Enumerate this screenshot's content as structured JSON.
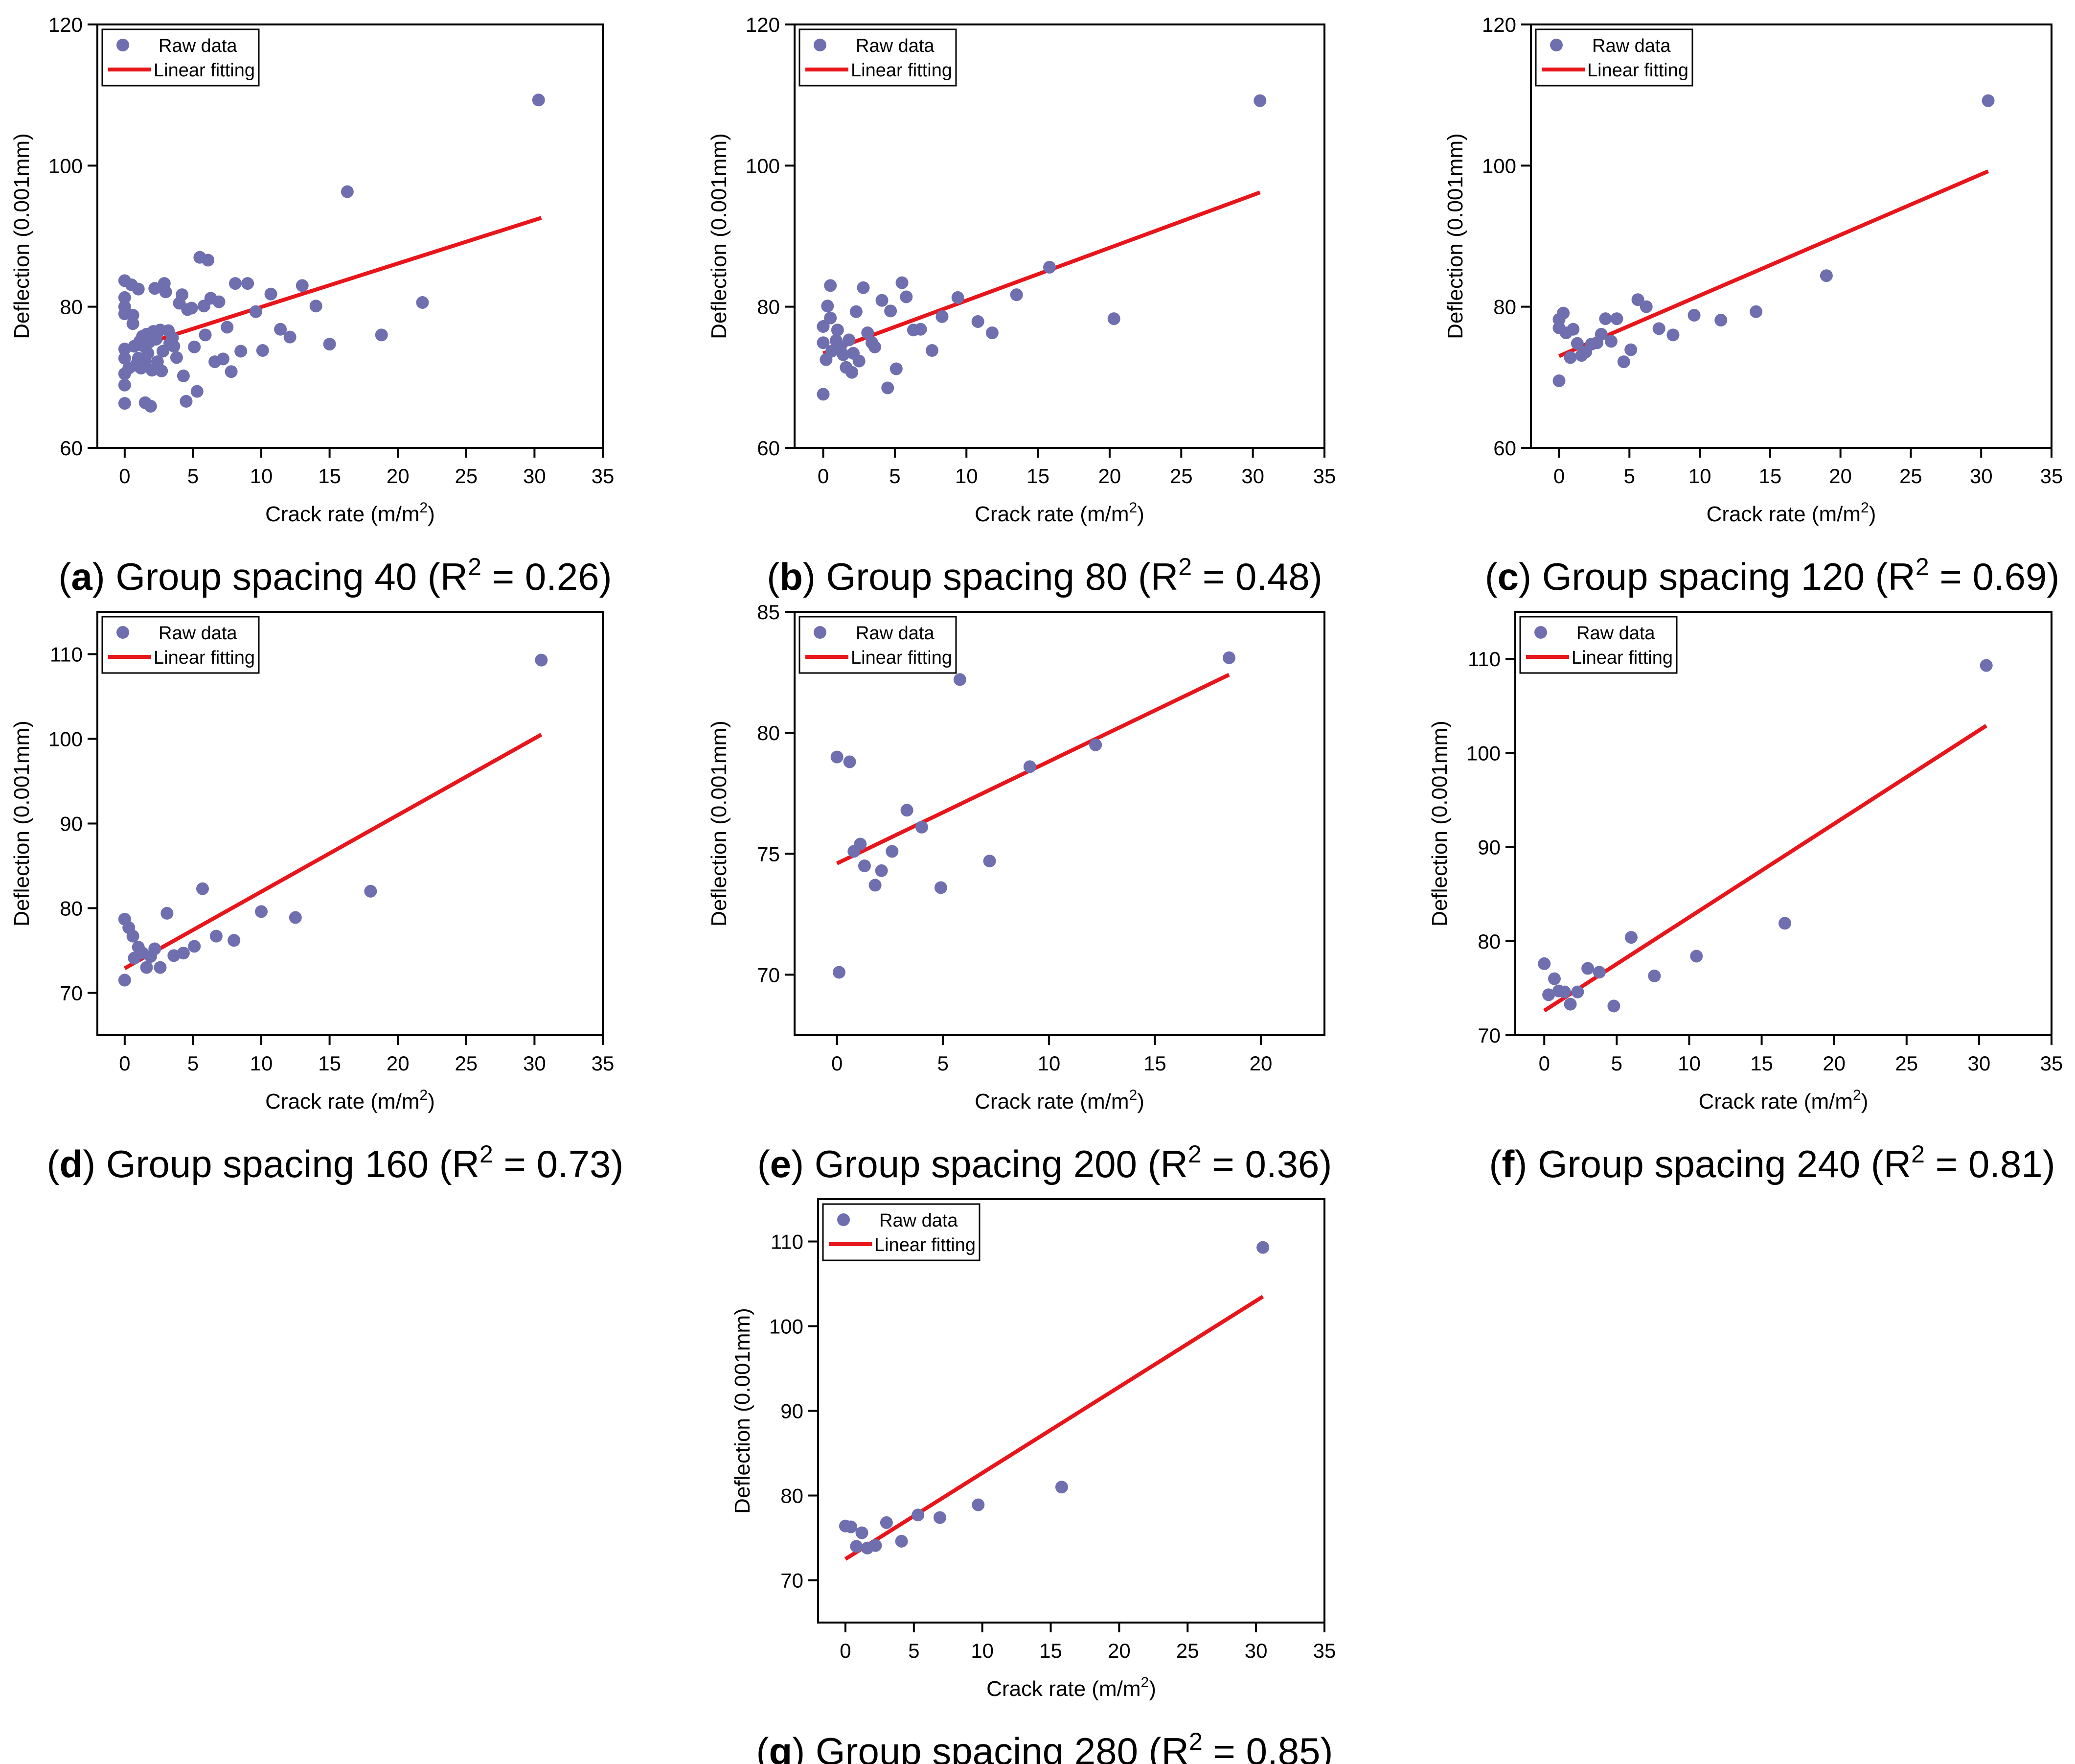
{
  "chart_data": [
    {
      "id": "a",
      "type": "scatter",
      "xlabel": "Crack rate (m/m",
      "xlabel_sup": "2",
      "xlabel_end": ")",
      "ylabel": "Deflection (0.001mm)",
      "xlim": [
        -2,
        35
      ],
      "ylim": [
        60,
        120
      ],
      "xticks": [
        0,
        5,
        10,
        15,
        20,
        25,
        30,
        35
      ],
      "yticks": [
        60,
        80,
        100,
        120
      ],
      "legend": [
        "Raw data",
        "Linear fitting"
      ],
      "caption": {
        "letter": "a",
        "text": " Group spacing 40 (R",
        "sup": "2",
        "end": " = 0.26)"
      },
      "fit": [
        [
          0,
          73.8
        ],
        [
          30.5,
          92.6
        ]
      ],
      "points": [
        [
          0,
          66.3
        ],
        [
          0,
          68.9
        ],
        [
          0,
          70.5
        ],
        [
          0,
          72.7
        ],
        [
          0,
          74.0
        ],
        [
          0,
          79.0
        ],
        [
          0,
          80.0
        ],
        [
          0,
          81.3
        ],
        [
          0,
          83.7
        ],
        [
          0.3,
          71.3
        ],
        [
          0.5,
          83.1
        ],
        [
          0.6,
          77.6
        ],
        [
          0.6,
          78.8
        ],
        [
          0.7,
          74.4
        ],
        [
          0.8,
          71.7
        ],
        [
          1.0,
          72.7
        ],
        [
          1.0,
          82.5
        ],
        [
          1.1,
          75.1
        ],
        [
          1.2,
          71.3
        ],
        [
          1.3,
          74.5
        ],
        [
          1.3,
          75.8
        ],
        [
          1.5,
          72.3
        ],
        [
          1.5,
          66.4
        ],
        [
          1.6,
          76.1
        ],
        [
          1.7,
          73.4
        ],
        [
          1.8,
          75.0
        ],
        [
          1.9,
          65.9
        ],
        [
          2.0,
          71.0
        ],
        [
          2.1,
          76.5
        ],
        [
          2.2,
          82.6
        ],
        [
          2.3,
          75.4
        ],
        [
          2.4,
          72.2
        ],
        [
          2.6,
          76.7
        ],
        [
          2.7,
          70.9
        ],
        [
          2.8,
          73.7
        ],
        [
          2.9,
          83.3
        ],
        [
          3.0,
          82.1
        ],
        [
          3.2,
          76.6
        ],
        [
          3.3,
          74.8
        ],
        [
          3.5,
          75.6
        ],
        [
          3.6,
          74.4
        ],
        [
          3.8,
          72.8
        ],
        [
          4.0,
          80.5
        ],
        [
          4.2,
          81.7
        ],
        [
          4.3,
          70.2
        ],
        [
          4.5,
          66.6
        ],
        [
          4.6,
          79.6
        ],
        [
          4.9,
          79.8
        ],
        [
          5.1,
          74.3
        ],
        [
          5.3,
          68.0
        ],
        [
          5.5,
          87.0
        ],
        [
          5.8,
          80.1
        ],
        [
          5.9,
          76.0
        ],
        [
          6.1,
          86.6
        ],
        [
          6.3,
          81.2
        ],
        [
          6.6,
          72.2
        ],
        [
          6.9,
          80.7
        ],
        [
          7.2,
          72.6
        ],
        [
          7.5,
          77.1
        ],
        [
          7.8,
          70.8
        ],
        [
          8.1,
          83.3
        ],
        [
          8.5,
          73.7
        ],
        [
          9.0,
          83.3
        ],
        [
          9.6,
          79.3
        ],
        [
          10.1,
          73.8
        ],
        [
          10.7,
          81.8
        ],
        [
          11.4,
          76.8
        ],
        [
          12.1,
          75.7
        ],
        [
          13.0,
          83.0
        ],
        [
          14.0,
          80.1
        ],
        [
          15.0,
          74.7
        ],
        [
          16.3,
          96.3
        ],
        [
          18.8,
          76.0
        ],
        [
          21.8,
          80.6
        ],
        [
          30.3,
          109.3
        ]
      ]
    },
    {
      "id": "b",
      "type": "scatter",
      "xlabel": "Crack rate (m/m",
      "xlabel_sup": "2",
      "xlabel_end": ")",
      "ylabel": "Deflection (0.001mm)",
      "xlim": [
        -2,
        35
      ],
      "ylim": [
        60,
        120
      ],
      "xticks": [
        0,
        5,
        10,
        15,
        20,
        25,
        30,
        35
      ],
      "yticks": [
        60,
        80,
        100,
        120
      ],
      "legend": [
        "Raw data",
        "Linear fitting"
      ],
      "caption": {
        "letter": "b",
        "text": " Group spacing 80 (R",
        "sup": "2",
        "end": " = 0.48)"
      },
      "fit": [
        [
          0,
          73.4
        ],
        [
          30.5,
          96.2
        ]
      ],
      "points": [
        [
          0,
          67.6
        ],
        [
          0,
          74.9
        ],
        [
          0,
          77.2
        ],
        [
          0.2,
          72.5
        ],
        [
          0.3,
          80.1
        ],
        [
          0.5,
          78.4
        ],
        [
          0.5,
          83.0
        ],
        [
          0.6,
          73.7
        ],
        [
          0.9,
          75.2
        ],
        [
          1.0,
          76.7
        ],
        [
          1.2,
          74.3
        ],
        [
          1.4,
          73.2
        ],
        [
          1.6,
          71.4
        ],
        [
          1.8,
          75.3
        ],
        [
          2.0,
          70.7
        ],
        [
          2.1,
          73.4
        ],
        [
          2.3,
          79.3
        ],
        [
          2.5,
          72.3
        ],
        [
          2.8,
          82.7
        ],
        [
          3.1,
          76.3
        ],
        [
          3.4,
          74.9
        ],
        [
          3.6,
          74.3
        ],
        [
          4.1,
          80.9
        ],
        [
          4.5,
          68.5
        ],
        [
          4.7,
          79.4
        ],
        [
          5.1,
          71.2
        ],
        [
          5.5,
          83.4
        ],
        [
          5.8,
          81.4
        ],
        [
          6.3,
          76.7
        ],
        [
          6.8,
          76.8
        ],
        [
          7.6,
          73.8
        ],
        [
          8.3,
          78.6
        ],
        [
          9.4,
          81.3
        ],
        [
          10.8,
          77.9
        ],
        [
          11.8,
          76.3
        ],
        [
          13.5,
          81.7
        ],
        [
          15.8,
          85.6
        ],
        [
          20.3,
          78.3
        ],
        [
          30.5,
          109.2
        ]
      ]
    },
    {
      "id": "c",
      "type": "scatter",
      "xlabel": "Crack rate (m/m",
      "xlabel_sup": "2",
      "xlabel_end": ")",
      "ylabel": "Deflection (0.001mm)",
      "xlim": [
        -2,
        35
      ],
      "ylim": [
        60,
        120
      ],
      "xticks": [
        0,
        5,
        10,
        15,
        20,
        25,
        30,
        35
      ],
      "yticks": [
        60,
        80,
        100,
        120
      ],
      "legend": [
        "Raw data",
        "Linear fitting"
      ],
      "caption": {
        "letter": "c",
        "text": " Group spacing 120 (R",
        "sup": "2",
        "end": " = 0.69)"
      },
      "fit": [
        [
          0,
          73.0
        ],
        [
          30.5,
          99.2
        ]
      ],
      "points": [
        [
          0,
          69.5
        ],
        [
          0,
          77.0
        ],
        [
          0,
          78.2
        ],
        [
          0.3,
          79.1
        ],
        [
          0.5,
          76.3
        ],
        [
          0.8,
          72.8
        ],
        [
          1.0,
          76.8
        ],
        [
          1.3,
          74.8
        ],
        [
          1.6,
          73.1
        ],
        [
          1.9,
          73.6
        ],
        [
          2.3,
          74.7
        ],
        [
          2.7,
          74.9
        ],
        [
          3.0,
          76.1
        ],
        [
          3.3,
          78.3
        ],
        [
          3.7,
          75.1
        ],
        [
          4.1,
          78.3
        ],
        [
          4.6,
          72.2
        ],
        [
          5.1,
          73.9
        ],
        [
          5.6,
          81.0
        ],
        [
          6.2,
          80.0
        ],
        [
          7.1,
          76.9
        ],
        [
          8.1,
          76.0
        ],
        [
          9.6,
          78.8
        ],
        [
          11.5,
          78.1
        ],
        [
          14.0,
          79.3
        ],
        [
          19.0,
          84.4
        ],
        [
          30.5,
          109.2
        ]
      ]
    },
    {
      "id": "d",
      "type": "scatter",
      "xlabel": "Crack rate (m/m",
      "xlabel_sup": "2",
      "xlabel_end": ")",
      "ylabel": "Deflection (0.001mm)",
      "xlim": [
        -2,
        35
      ],
      "ylim": [
        65,
        115
      ],
      "xticks": [
        0,
        5,
        10,
        15,
        20,
        25,
        30,
        35
      ],
      "yticks": [
        70,
        80,
        90,
        100,
        110
      ],
      "legend": [
        "Raw data",
        "Linear fitting"
      ],
      "caption": {
        "letter": "d",
        "text": " Group spacing 160 (R",
        "sup": "2",
        "end": " = 0.73)"
      },
      "fit": [
        [
          0,
          72.9
        ],
        [
          30.5,
          100.5
        ]
      ],
      "points": [
        [
          0,
          71.5
        ],
        [
          0,
          78.7
        ],
        [
          0.3,
          77.7
        ],
        [
          0.6,
          76.7
        ],
        [
          0.7,
          74.1
        ],
        [
          1.0,
          75.4
        ],
        [
          1.3,
          74.7
        ],
        [
          1.6,
          73.0
        ],
        [
          1.9,
          74.3
        ],
        [
          2.2,
          75.2
        ],
        [
          2.6,
          73.0
        ],
        [
          3.1,
          79.4
        ],
        [
          3.6,
          74.4
        ],
        [
          4.3,
          74.7
        ],
        [
          5.1,
          75.5
        ],
        [
          5.7,
          82.3
        ],
        [
          6.7,
          76.7
        ],
        [
          8.0,
          76.2
        ],
        [
          10.0,
          79.6
        ],
        [
          12.5,
          78.9
        ],
        [
          18.0,
          82.0
        ],
        [
          30.5,
          109.3
        ]
      ]
    },
    {
      "id": "e",
      "type": "scatter",
      "xlabel": "Crack rate (m/m",
      "xlabel_sup": "2",
      "xlabel_end": ")",
      "ylabel": "Deflection (0.001mm)",
      "xlim": [
        -2,
        23
      ],
      "ylim": [
        67.5,
        85
      ],
      "xticks": [
        0,
        5,
        10,
        15,
        20
      ],
      "yticks": [
        70,
        75,
        80,
        85
      ],
      "legend": [
        "Raw data",
        "Linear fitting"
      ],
      "caption": {
        "letter": "e",
        "text": " Group spacing 200 (R",
        "sup": "2",
        "end": " = 0.36)"
      },
      "fit": [
        [
          0,
          74.6
        ],
        [
          18.5,
          82.4
        ]
      ],
      "points": [
        [
          0,
          79.0
        ],
        [
          0.1,
          70.1
        ],
        [
          0.6,
          78.8
        ],
        [
          0.8,
          75.1
        ],
        [
          1.1,
          75.4
        ],
        [
          1.3,
          74.5
        ],
        [
          1.8,
          73.7
        ],
        [
          2.1,
          74.3
        ],
        [
          2.6,
          75.1
        ],
        [
          3.3,
          76.8
        ],
        [
          4.0,
          76.1
        ],
        [
          4.9,
          73.6
        ],
        [
          5.8,
          82.2
        ],
        [
          7.2,
          74.7
        ],
        [
          9.1,
          78.6
        ],
        [
          12.2,
          79.5
        ],
        [
          18.5,
          83.1
        ]
      ]
    },
    {
      "id": "f",
      "type": "scatter",
      "xlabel": "Crack rate (m/m",
      "xlabel_sup": "2",
      "xlabel_end": ")",
      "ylabel": "Deflection (0.001mm)",
      "xlim": [
        -2,
        35
      ],
      "ylim": [
        70,
        115
      ],
      "xticks": [
        0,
        5,
        10,
        15,
        20,
        25,
        30,
        35
      ],
      "yticks": [
        70,
        80,
        90,
        100,
        110
      ],
      "legend": [
        "Raw data",
        "Linear fitting"
      ],
      "caption": {
        "letter": "f",
        "text": " Group spacing 240 (R",
        "sup": "2",
        "end": " = 0.81)"
      },
      "fit": [
        [
          0,
          72.6
        ],
        [
          30.5,
          102.9
        ]
      ],
      "points": [
        [
          0,
          77.6
        ],
        [
          0.3,
          74.3
        ],
        [
          0.7,
          76.0
        ],
        [
          1.0,
          74.7
        ],
        [
          1.4,
          74.6
        ],
        [
          1.8,
          73.3
        ],
        [
          2.3,
          74.6
        ],
        [
          3.0,
          77.1
        ],
        [
          3.8,
          76.7
        ],
        [
          4.8,
          73.1
        ],
        [
          6.0,
          80.4
        ],
        [
          7.6,
          76.3
        ],
        [
          10.5,
          78.4
        ],
        [
          16.6,
          81.9
        ],
        [
          30.5,
          109.3
        ]
      ]
    },
    {
      "id": "g",
      "type": "scatter",
      "xlabel": "Crack rate (m/m",
      "xlabel_sup": "2",
      "xlabel_end": ")",
      "ylabel": "Deflection (0.001mm)",
      "xlim": [
        -2,
        35
      ],
      "ylim": [
        65,
        115
      ],
      "xticks": [
        0,
        5,
        10,
        15,
        20,
        25,
        30,
        35
      ],
      "yticks": [
        70,
        80,
        90,
        100,
        110
      ],
      "legend": [
        "Raw data",
        "Linear fitting"
      ],
      "caption": {
        "letter": "g",
        "text": " Group spacing 280 (R",
        "sup": "2",
        "end": " = 0.85)"
      },
      "fit": [
        [
          0,
          72.5
        ],
        [
          30.5,
          103.5
        ]
      ],
      "points": [
        [
          0,
          76.4
        ],
        [
          0.4,
          76.3
        ],
        [
          0.8,
          74.0
        ],
        [
          1.2,
          75.6
        ],
        [
          1.6,
          73.8
        ],
        [
          2.2,
          74.1
        ],
        [
          3.0,
          76.8
        ],
        [
          4.1,
          74.6
        ],
        [
          5.3,
          77.7
        ],
        [
          6.9,
          77.4
        ],
        [
          9.7,
          78.9
        ],
        [
          15.8,
          81.0
        ],
        [
          30.5,
          109.3
        ]
      ]
    }
  ]
}
